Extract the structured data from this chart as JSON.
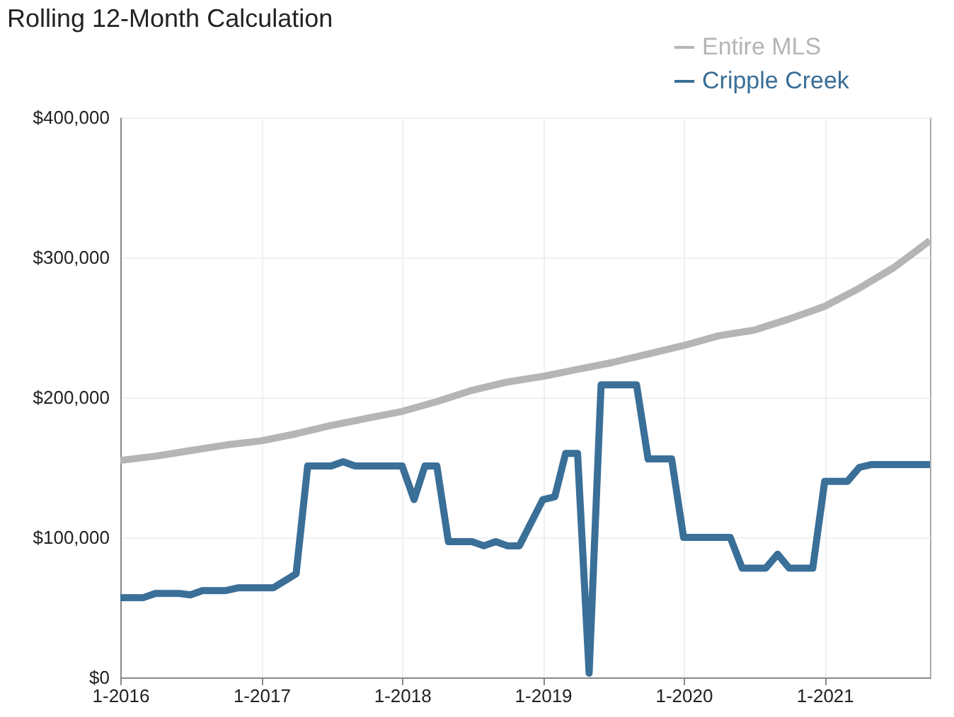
{
  "chart_data": {
    "type": "line",
    "title": "Rolling 12-Month Calculation",
    "xlim": [
      "2016-01",
      "2021-10"
    ],
    "xticks": [
      {
        "value": "2016-01",
        "label": "1-2016"
      },
      {
        "value": "2017-01",
        "label": "1-2017"
      },
      {
        "value": "2018-01",
        "label": "1-2018"
      },
      {
        "value": "2019-01",
        "label": "1-2019"
      },
      {
        "value": "2020-01",
        "label": "1-2020"
      },
      {
        "value": "2021-01",
        "label": "1-2021"
      }
    ],
    "ylim": [
      0,
      400000
    ],
    "yticks": [
      {
        "value": 0,
        "label": "$0"
      },
      {
        "value": 100000,
        "label": "$100,000"
      },
      {
        "value": 200000,
        "label": "$200,000"
      },
      {
        "value": 300000,
        "label": "$300,000"
      },
      {
        "value": 400000,
        "label": "$400,000"
      }
    ],
    "grid": true,
    "legend": "top right",
    "marker": "none",
    "line_style": "solid",
    "series": [
      {
        "name": "Entire MLS",
        "color": "#b5b5b5",
        "x": [
          "2016-01",
          "2016-04",
          "2016-07",
          "2016-10",
          "2017-01",
          "2017-04",
          "2017-07",
          "2017-10",
          "2018-01",
          "2018-04",
          "2018-07",
          "2018-10",
          "2019-01",
          "2019-04",
          "2019-07",
          "2019-10",
          "2020-01",
          "2020-04",
          "2020-07",
          "2020-10",
          "2021-01",
          "2021-04",
          "2021-07",
          "2021-10"
        ],
        "values": [
          155000,
          158000,
          162000,
          166000,
          169000,
          174000,
          180000,
          185000,
          190000,
          197000,
          205000,
          211000,
          215000,
          220000,
          225000,
          231000,
          237000,
          244000,
          248000,
          256000,
          265000,
          278000,
          293000,
          312000
        ]
      },
      {
        "name": "Cripple Creek",
        "color": "#3a6f98",
        "x": [
          "2016-01",
          "2016-03",
          "2016-04",
          "2016-06",
          "2016-07",
          "2016-08",
          "2016-10",
          "2016-11",
          "2017-02",
          "2017-04",
          "2017-05",
          "2017-07",
          "2017-08",
          "2017-09",
          "2018-01",
          "2018-02",
          "2018-03",
          "2018-04",
          "2018-05",
          "2018-07",
          "2018-08",
          "2018-09",
          "2018-10",
          "2018-11",
          "2019-01",
          "2019-02",
          "2019-03",
          "2019-04",
          "2019-05",
          "2019-06",
          "2019-09",
          "2019-10",
          "2019-12",
          "2020-01",
          "2020-05",
          "2020-06",
          "2020-08",
          "2020-09",
          "2020-10",
          "2020-12",
          "2021-01",
          "2021-03",
          "2021-04",
          "2021-05",
          "2021-10"
        ],
        "values": [
          57000,
          57000,
          60000,
          60000,
          59000,
          62000,
          62000,
          64000,
          64000,
          74000,
          151000,
          151000,
          154000,
          151000,
          151000,
          127000,
          151000,
          151000,
          97000,
          97000,
          94000,
          97000,
          94000,
          94000,
          127000,
          129000,
          160000,
          160000,
          3000,
          209000,
          209000,
          156000,
          156000,
          100000,
          100000,
          78000,
          78000,
          88000,
          78000,
          78000,
          140000,
          140000,
          150000,
          152000,
          152000
        ]
      }
    ]
  }
}
